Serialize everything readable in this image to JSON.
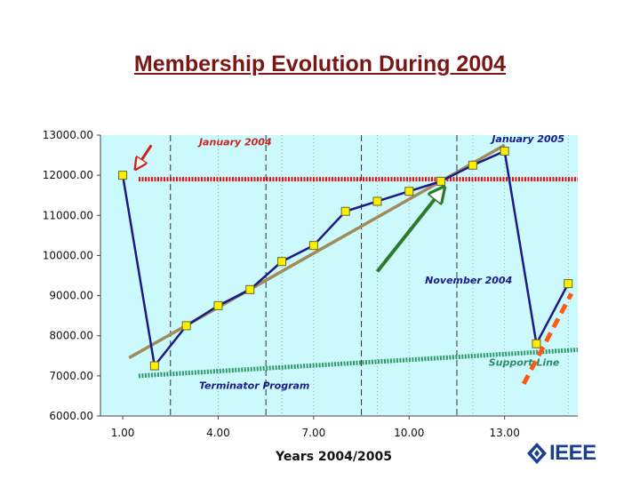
{
  "slide": {
    "title": "Membership Evolution During 2004"
  },
  "colors": {
    "plot_bg": "#ccf9fb",
    "series_line": "#1a1a8a",
    "marker": "#ffee00",
    "trend": "#a08c5a",
    "resistance": "#dd1111",
    "support": "#2e9a6a",
    "breakout": "#ff5a14",
    "annotation_red": "#cc2222",
    "annotation_blue": "#1a1a8a",
    "annotation_green": "#2e8a6a",
    "arrow_green": "#2a7a2a",
    "logo": "#1a3f8f"
  },
  "chart_data": {
    "type": "line",
    "xlabel": "Years 2004/2005",
    "ylabel": "",
    "xlim": [
      0.3,
      15.3
    ],
    "ylim": [
      6000,
      13000
    ],
    "x_ticks": [
      "1.00",
      "4.00",
      "7.00",
      "10.00",
      "13.00"
    ],
    "x_tick_values": [
      1,
      4,
      7,
      10,
      13
    ],
    "y_ticks": [
      "13000.00",
      "12000.00",
      "11000.00",
      "10000.00",
      "9000.00",
      "8000.00",
      "7000.00",
      "6000.00"
    ],
    "y_tick_values": [
      13000,
      12000,
      11000,
      10000,
      9000,
      8000,
      7000,
      6000
    ],
    "grid_x_dashed": [
      2.5,
      5.5,
      8.5,
      11.5
    ],
    "grid_x_dotted": [
      4,
      6,
      7,
      9,
      10,
      12,
      13,
      15
    ],
    "series": [
      {
        "x": [
          1,
          2,
          3,
          4,
          5,
          6,
          7,
          8,
          9,
          10,
          11,
          12,
          13,
          14,
          15
        ],
        "values": [
          12000,
          7250,
          8250,
          8750,
          9150,
          9850,
          10250,
          11100,
          11350,
          11600,
          11850,
          12250,
          12600,
          7800,
          9300
        ]
      }
    ],
    "trend_line": {
      "from": [
        1.2,
        7450
      ],
      "to": [
        13.0,
        12750
      ]
    },
    "resistance_line": {
      "y": 11900,
      "from_x": 1.5,
      "to_x": 15.3
    },
    "support_line": {
      "from": [
        1.5,
        7000
      ],
      "to": [
        15.3,
        7650
      ]
    },
    "breakout_line": {
      "from": [
        13.6,
        6800
      ],
      "to": [
        15.1,
        9050
      ]
    },
    "annotations": [
      {
        "text": "January 2004",
        "x": 3.4,
        "y": 12750,
        "color_key": "annotation_red"
      },
      {
        "text": "January 2005",
        "x": 12.6,
        "y": 12820,
        "color_key": "annotation_blue"
      },
      {
        "text": "November 2004",
        "x": 10.5,
        "y": 9300,
        "color_key": "annotation_blue"
      },
      {
        "text": "Support Line",
        "x": 12.5,
        "y": 7250,
        "color_key": "annotation_green"
      },
      {
        "text": "Terminator Program",
        "x": 3.4,
        "y": 6680,
        "color_key": "annotation_blue"
      }
    ],
    "arrows": [
      {
        "from": [
          1.9,
          12750
        ],
        "to": [
          1.4,
          12150
        ],
        "color_key": "annotation_red",
        "head": "hollow"
      },
      {
        "from": [
          9.0,
          9600
        ],
        "to": [
          11.1,
          11700
        ],
        "color_key": "arrow_green",
        "head": "hollow"
      }
    ]
  },
  "logo": {
    "text": "IEEE"
  }
}
